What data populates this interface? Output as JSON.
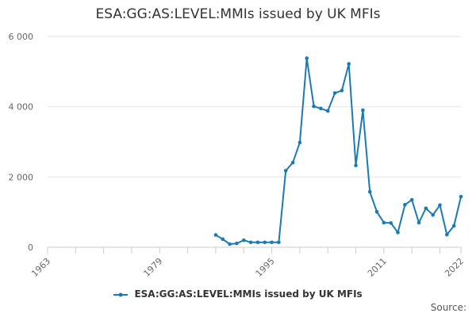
{
  "chart_data": {
    "type": "line",
    "title": "ESA:GG:AS:LEVEL:MMIs issued by UK MFIs",
    "xlabel": "",
    "ylabel": "",
    "xlim": [
      1963,
      2022
    ],
    "ylim": [
      0,
      6000
    ],
    "x_ticks": [
      1963,
      1979,
      1995,
      2011,
      2022
    ],
    "x_tick_labels": [
      "1963",
      "1979",
      "1995",
      "2011",
      "2022"
    ],
    "x_minor_ticks": [
      1963,
      1967,
      1971,
      1975,
      1979,
      1983,
      1987,
      1991,
      1995,
      1999,
      2003,
      2007,
      2011,
      2015,
      2019,
      2022
    ],
    "y_ticks": [
      0,
      2000,
      4000,
      6000
    ],
    "y_tick_labels": [
      "0",
      "2 000",
      "4 000",
      "6 000"
    ],
    "grid": "horizontal",
    "legend_position": "bottom",
    "series": [
      {
        "name": "ESA:GG:AS:LEVEL:MMIs issued by UK MFIs",
        "color": "#1a7ab5",
        "x": [
          1987,
          1988,
          1989,
          1990,
          1991,
          1992,
          1993,
          1994,
          1995,
          1996,
          1997,
          1998,
          1999,
          2000,
          2001,
          2002,
          2003,
          2004,
          2005,
          2006,
          2007,
          2008,
          2009,
          2010,
          2011,
          2012,
          2013,
          2014,
          2015,
          2016,
          2017,
          2018,
          2019,
          2020,
          2021,
          2022
        ],
        "values": [
          350,
          230,
          90,
          110,
          200,
          140,
          140,
          140,
          140,
          140,
          2180,
          2410,
          2980,
          5380,
          4010,
          3950,
          3880,
          4390,
          4460,
          5220,
          2330,
          3900,
          1580,
          1010,
          700,
          690,
          420,
          1210,
          1350,
          700,
          1110,
          920,
          1200,
          360,
          610,
          1440
        ]
      }
    ]
  },
  "source_label": "Source:"
}
